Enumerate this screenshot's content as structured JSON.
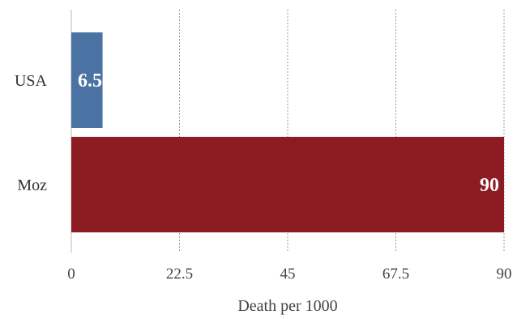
{
  "chart_data": {
    "type": "bar",
    "orientation": "horizontal",
    "categories": [
      "USA",
      "Moz"
    ],
    "values": [
      6.5,
      90
    ],
    "data_labels": [
      "6.5",
      "90"
    ],
    "colors": [
      "#4a72a2",
      "#8c1c21"
    ],
    "xlabel": "Death per 1000",
    "xlim": [
      0,
      90
    ],
    "xticks": [
      "0",
      "22.5",
      "45",
      "67.5",
      "90"
    ],
    "xtick_values": [
      0,
      22.5,
      45,
      67.5,
      90
    ],
    "grid": "vertical dotted",
    "legend": "none"
  }
}
